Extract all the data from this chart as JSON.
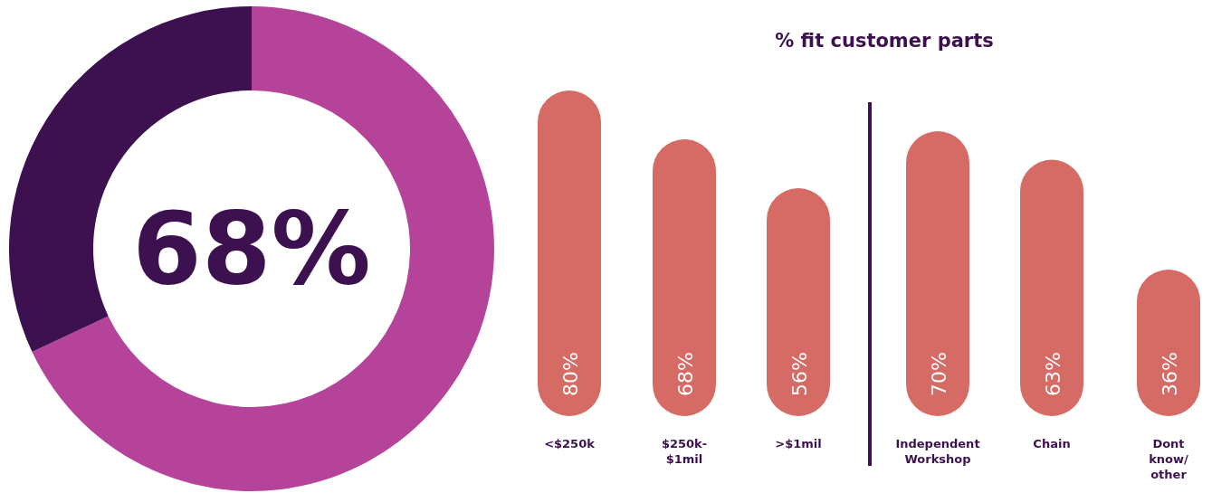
{
  "chart_data": [
    {
      "type": "donut",
      "categories": [
        null,
        null
      ],
      "values": [
        68,
        32
      ],
      "colors": [
        "#b5439a",
        "#3d1150"
      ],
      "annotations": [
        "68%"
      ]
    },
    {
      "type": "bar",
      "title": "% fit customer parts",
      "categories": [
        "<$250k",
        "$250k-$1mil",
        ">$1mil",
        "Independent Workshop",
        "Chain",
        "Dont know/ other"
      ],
      "values": [
        80,
        68,
        56,
        70,
        63,
        36
      ],
      "color": "#d66a65",
      "value_labels": [
        "80%",
        "68%",
        "56%",
        "70%",
        "63%",
        "36%"
      ]
    }
  ]
}
